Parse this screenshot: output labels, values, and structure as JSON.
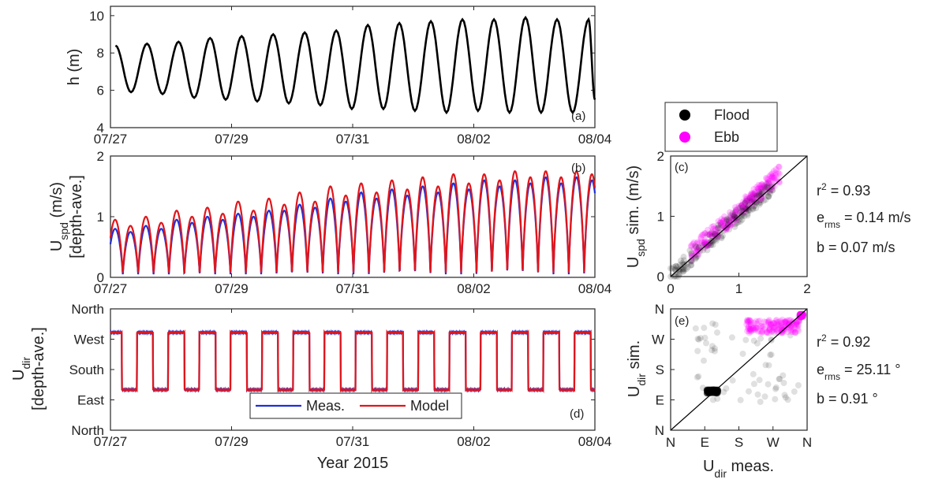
{
  "chart_data": [
    {
      "id": "a",
      "type": "line",
      "panel_label": "(a)",
      "ylabel": "h (m)",
      "ylim": [
        4,
        10.5
      ],
      "yticks": [
        "4",
        "6",
        "8",
        "10"
      ],
      "xlim": [
        "2015-07-27",
        "2015-08-04"
      ],
      "xticks": [
        "07/27",
        "07/29",
        "07/31",
        "08/02",
        "08/04"
      ],
      "series": [
        {
          "color": "#000000",
          "x": [
            "07/27 02:00",
            "07/27 08:10",
            "07/27 14:30",
            "07/27 20:40",
            "07/28 03:00",
            "07/28 09:10",
            "07/28 15:30",
            "07/28 21:40",
            "07/29 04:00",
            "07/29 10:10",
            "07/29 16:30",
            "07/29 22:40",
            "07/30 05:00",
            "07/30 11:10",
            "07/30 17:30",
            "07/30 23:40",
            "07/31 06:00",
            "07/31 12:10",
            "07/31 18:30",
            "08/01 00:40",
            "08/01 07:00",
            "08/01 13:10",
            "08/01 19:30",
            "08/02 01:40",
            "08/02 08:00",
            "08/02 14:10",
            "08/02 20:30",
            "08/03 02:40",
            "08/03 09:00",
            "08/03 15:10",
            "08/03 21:30",
            "08/04 00:00"
          ],
          "y": [
            8.4,
            5.9,
            8.5,
            5.8,
            8.6,
            5.6,
            8.8,
            5.5,
            8.9,
            5.4,
            9.0,
            5.3,
            9.1,
            5.2,
            9.2,
            5.0,
            9.5,
            5.0,
            9.6,
            4.9,
            9.7,
            4.8,
            9.8,
            4.9,
            9.8,
            4.8,
            9.9,
            4.8,
            9.8,
            4.8,
            9.8,
            5.5
          ]
        }
      ]
    },
    {
      "id": "b",
      "type": "line",
      "panel_label": "(b)",
      "ylabel": "U_spd (m/s) [depth-ave.]",
      "ylim": [
        0,
        2
      ],
      "yticks": [
        "0",
        "1",
        "2"
      ],
      "xlim": [
        "2015-07-27",
        "2015-08-04"
      ],
      "xticks": [
        "07/27",
        "07/29",
        "07/31",
        "08/02",
        "08/04"
      ],
      "series": [
        {
          "name": "Meas.",
          "color": "#1f2fd6"
        },
        {
          "name": "Model",
          "color": "#e0161b"
        }
      ],
      "flood_peak_meas": [
        0.8,
        0.85,
        0.95,
        1.0,
        1.05,
        1.1,
        1.2,
        1.3,
        1.4,
        1.45,
        1.5,
        1.55,
        1.6,
        1.6,
        1.65,
        1.65
      ],
      "ebb_peak_meas": [
        0.75,
        0.8,
        0.9,
        0.95,
        1.0,
        1.1,
        1.15,
        1.25,
        1.3,
        1.35,
        1.4,
        1.45,
        1.5,
        1.55,
        1.55,
        1.6
      ],
      "flood_peak_model": [
        0.95,
        1.0,
        1.1,
        1.15,
        1.25,
        1.3,
        1.4,
        1.5,
        1.55,
        1.6,
        1.65,
        1.7,
        1.7,
        1.75,
        1.75,
        1.75
      ],
      "ebb_peak_model": [
        0.85,
        0.9,
        1.0,
        1.05,
        1.1,
        1.2,
        1.25,
        1.35,
        1.4,
        1.45,
        1.5,
        1.55,
        1.6,
        1.65,
        1.65,
        1.7
      ]
    },
    {
      "id": "c",
      "type": "scatter",
      "panel_label": "(c)",
      "xlim": [
        0,
        2
      ],
      "ylim": [
        0,
        2
      ],
      "xticks": [
        "0",
        "1",
        "2"
      ],
      "yticks": [
        "0",
        "1",
        "2"
      ],
      "ylabel": "U_spd sim. (m/s)",
      "reference_line": "1:1",
      "legend": [
        {
          "name": "Flood",
          "color": "#000000"
        },
        {
          "name": "Ebb",
          "color": "#ff00ff"
        }
      ],
      "stats": [
        "r",
        "2",
        " = 0.93",
        "e",
        "rms",
        " = 0.14 m/s",
        "b = 0.07 m/s"
      ]
    },
    {
      "id": "d",
      "type": "line",
      "panel_label": "(d)",
      "ylabel": "U_dir [depth-ave.]",
      "yticks": [
        "North",
        "West",
        "South",
        "East",
        "North"
      ],
      "xlabel": "Year 2015",
      "xlim": [
        "2015-07-27",
        "2015-08-04"
      ],
      "xticks": [
        "07/27",
        "07/29",
        "07/31",
        "08/02",
        "08/04"
      ],
      "flood_dir_deg": 120,
      "ebb_dir_deg": 290,
      "legend": [
        {
          "name": "Meas.",
          "color": "#1f2fd6"
        },
        {
          "name": "Model",
          "color": "#e0161b"
        }
      ]
    },
    {
      "id": "e",
      "type": "scatter",
      "panel_label": "(e)",
      "xticks": [
        "N",
        "E",
        "S",
        "W",
        "N"
      ],
      "yticks": [
        "N",
        "W",
        "S",
        "E",
        "N"
      ],
      "xlabel": "U_dir meas.",
      "ylabel": "U_dir sim.",
      "reference_line": "1:1",
      "stats": [
        "r",
        "2",
        " = 0.92",
        "e",
        "rms",
        " = 25.11 °",
        "b = 0.91 °"
      ]
    }
  ],
  "labels": {
    "a_ylabel": "h (m)",
    "b_ylabel_main": "U",
    "b_ylabel_sub": "spd",
    "b_ylabel_rest": " (m/s)",
    "b_ylabel_line2": "[depth-ave.]",
    "d_ylabel_main": "U",
    "d_ylabel_sub": "dir",
    "d_ylabel_line2": "[depth-ave.]",
    "d_xlabel": "Year 2015",
    "c_ylabel_main": "U",
    "c_ylabel_sub": "spd",
    "c_ylabel_rest": " sim. (m/s)",
    "e_ylabel_main": "U",
    "e_ylabel_sub": "dir",
    "e_ylabel_rest": " sim.",
    "e_xlabel_main": "U",
    "e_xlabel_sub": "dir",
    "e_xlabel_rest": " meas."
  }
}
